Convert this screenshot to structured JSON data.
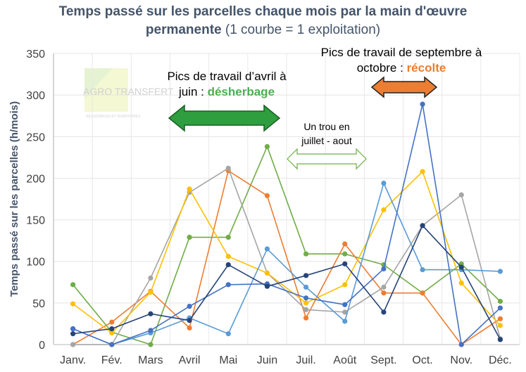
{
  "chart_data": {
    "type": "line",
    "title_bold_1": "Temps passé sur les parcelles chaque mois par la main d'œuvre",
    "title_bold_2": "permanente",
    "title_rest": " (1 courbe = 1 exploitation)",
    "ylabel": "Temps passé sur les parcelles (h/mois)",
    "xlabel": "",
    "ylim": [
      0,
      350
    ],
    "yticks": [
      0,
      50,
      100,
      150,
      200,
      250,
      300,
      350
    ],
    "grid": true,
    "categories": [
      "Janv.",
      "Fév.",
      "Mars",
      "Avril",
      "Mai",
      "Juin",
      "Juil.",
      "Août",
      "Sept.",
      "Oct.",
      "Nov.",
      "Déc."
    ],
    "series": [
      {
        "color": "#70AD47",
        "values": [
          72,
          15,
          0,
          129,
          129,
          238,
          109,
          109,
          96,
          62,
          97,
          52
        ]
      },
      {
        "color": "#ED7D31",
        "values": [
          0,
          27,
          64,
          20,
          209,
          179,
          32,
          121,
          62,
          62,
          0,
          31
        ]
      },
      {
        "color": "#A5A5A5",
        "values": [
          0,
          0,
          80,
          183,
          212,
          86,
          42,
          39,
          69,
          143,
          180,
          7
        ]
      },
      {
        "color": "#FFC000",
        "values": [
          49,
          14,
          63,
          187,
          106,
          86,
          50,
          72,
          162,
          208,
          74,
          23
        ]
      },
      {
        "color": "#5B9BD5",
        "values": [
          19,
          0,
          14,
          32,
          13,
          115,
          69,
          28,
          194,
          90,
          90,
          88
        ]
      },
      {
        "color": "#4472C4",
        "values": [
          19,
          0,
          17,
          46,
          72,
          73,
          56,
          48,
          91,
          289,
          0,
          44
        ]
      },
      {
        "color": "#264478",
        "values": [
          13,
          19,
          37,
          29,
          96,
          70,
          83,
          97,
          39,
          143,
          93,
          6
        ]
      }
    ],
    "annotations": {
      "spring_line1": "Pics de travail d’avril à",
      "spring_line2": "juin : ",
      "spring_keyword": "désherbage",
      "spring_color": "#4CAF50",
      "gap_line1": "Un trou en",
      "gap_line2": "juillet - aout",
      "autumn_line1": "Pics de travail de septembre à",
      "autumn_line2": "octobre : ",
      "autumn_keyword": "récolte",
      "autumn_color": "#ED7D31"
    },
    "logo": {
      "text": "AGRO TRANSFERT",
      "subtext": "RESSOURCES ET TERRITOIRES"
    }
  }
}
